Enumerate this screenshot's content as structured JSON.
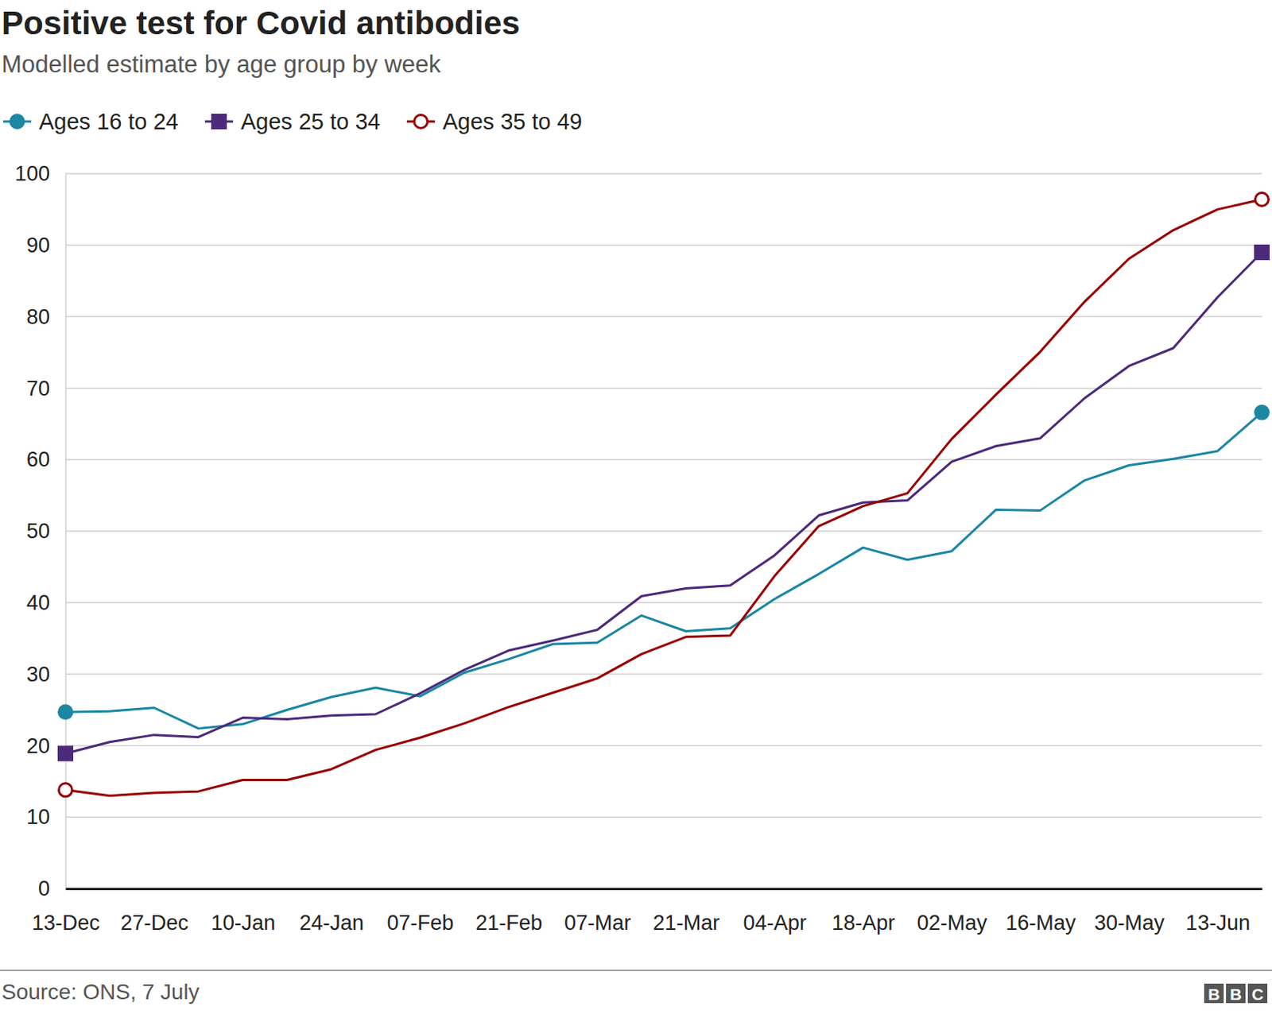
{
  "chart_data": {
    "type": "line",
    "title": "Positive test for Covid antibodies",
    "subtitle": "Modelled estimate by age group by week",
    "source": "Source: ONS, 7 July",
    "credit": "BBC",
    "categories": [
      "13-Dec",
      null,
      "27-Dec",
      null,
      "10-Jan",
      null,
      "24-Jan",
      null,
      "07-Feb",
      null,
      "21-Feb",
      null,
      "07-Mar",
      null,
      "21-Mar",
      null,
      "04-Apr",
      null,
      "18-Apr",
      null,
      "02-May",
      null,
      "16-May",
      null,
      "30-May",
      null,
      "13-Jun",
      null
    ],
    "series": [
      {
        "name": "Ages 16 to 24",
        "color": "#1b87a3",
        "marker": "circle",
        "values": [
          24.7,
          24.8,
          25.3,
          22.4,
          23.0,
          25.0,
          26.8,
          28.1,
          26.9,
          30.2,
          32.1,
          34.2,
          34.4,
          38.2,
          36.0,
          36.4,
          40.5,
          44.0,
          47.7,
          46.0,
          47.2,
          53.0,
          52.9,
          57.1,
          59.2,
          60.1,
          61.2,
          66.6
        ]
      },
      {
        "name": "Ages 25 to 34",
        "color": "#4c2a7a",
        "marker": "square",
        "values": [
          18.9,
          20.5,
          21.5,
          21.2,
          23.9,
          23.7,
          24.2,
          24.4,
          27.3,
          30.6,
          33.3,
          34.7,
          36.2,
          40.9,
          42.0,
          42.4,
          46.6,
          52.2,
          54.0,
          54.3,
          59.7,
          61.9,
          63.0,
          68.6,
          73.1,
          75.6,
          82.7,
          89.0
        ]
      },
      {
        "name": "Ages 35 to 49",
        "color": "#990000",
        "marker": "open-circle",
        "values": [
          13.8,
          13.0,
          13.4,
          13.6,
          15.2,
          15.2,
          16.7,
          19.4,
          21.1,
          23.1,
          25.4,
          27.4,
          29.4,
          32.8,
          35.2,
          35.4,
          43.7,
          50.7,
          53.5,
          55.3,
          62.9,
          69.1,
          75.1,
          82.1,
          88.1,
          92.1,
          95.0,
          96.4
        ]
      }
    ],
    "ylim": [
      0,
      100
    ],
    "yticks": [
      0,
      10,
      20,
      30,
      40,
      50,
      60,
      70,
      80,
      90,
      100
    ],
    "grid": true,
    "legend": "top-left"
  }
}
